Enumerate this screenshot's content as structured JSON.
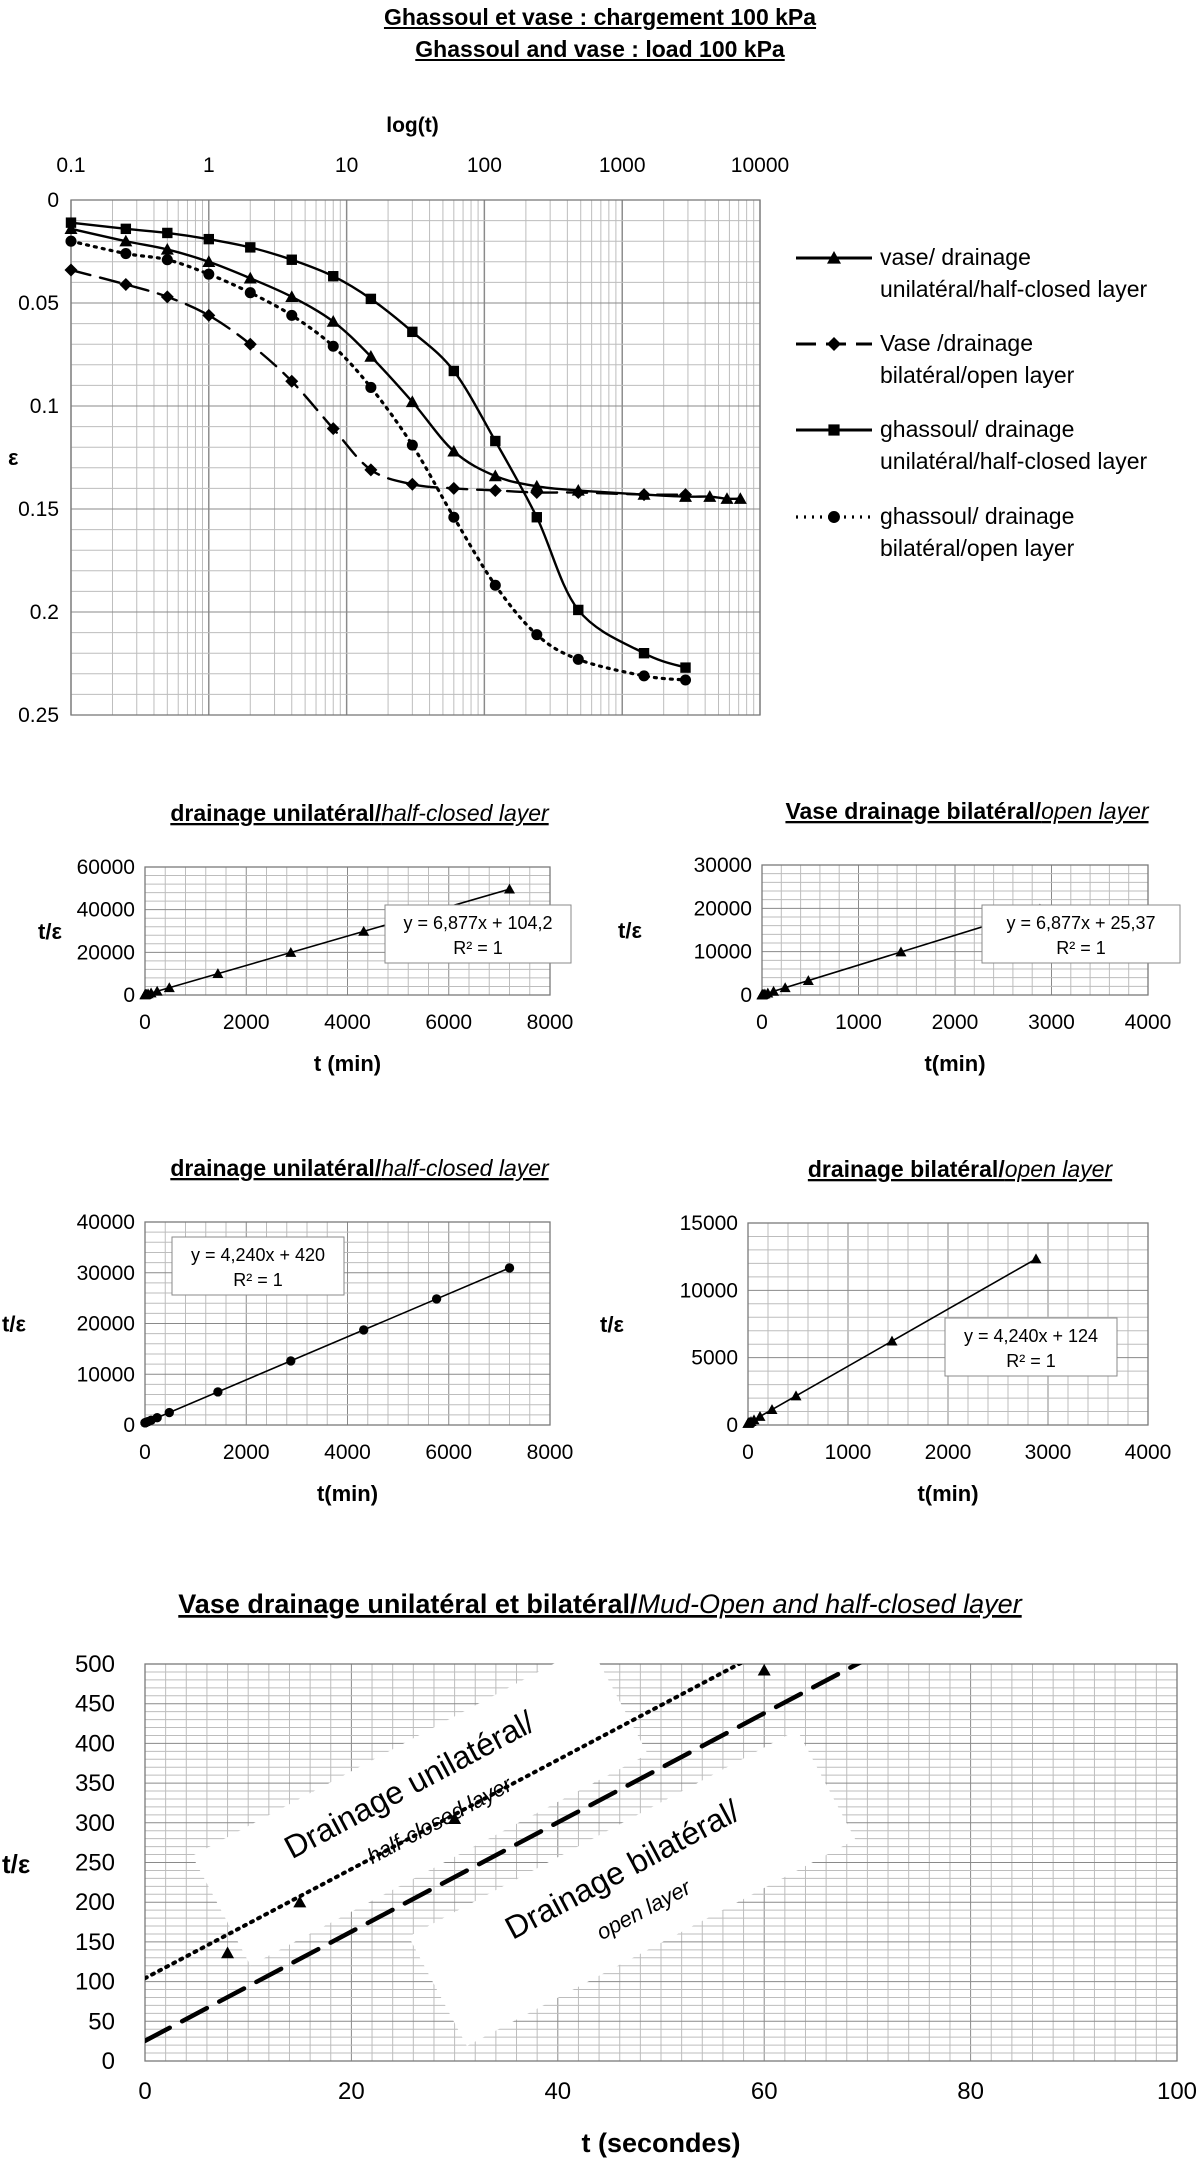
{
  "figure": {
    "title_fr": "Ghassoul et vase : chargement 100 kPa",
    "title_en": "Ghassoul and vase : load 100 kPa"
  },
  "colors": {
    "line": "#000000",
    "grid": "#bdbdbd",
    "plot_bg": "#ffffff"
  },
  "chart_data": [
    {
      "type": "line",
      "title": "",
      "xlabel": "log(t)",
      "ylabel": "ε",
      "xscale": "log",
      "xlim": [
        0.1,
        10000
      ],
      "ylim": [
        0,
        0.25
      ],
      "y_inverted": true,
      "x_axis_position": "top",
      "x_ticks": [
        "0.1",
        "1",
        "10",
        "100",
        "1000",
        "10000"
      ],
      "y_ticks": [
        "0",
        "0.05",
        "0.1",
        "0.15",
        "0.2",
        "0.25"
      ],
      "grid": true,
      "legend_position": "right",
      "series": [
        {
          "name": "vase/ drainage unilatéral/half-closed layer",
          "marker": "triangle",
          "dash": "solid",
          "x": [
            0.1,
            0.25,
            0.5,
            1,
            2,
            4,
            8,
            15,
            30,
            60,
            120,
            240,
            480,
            1440,
            2880,
            4320,
            5760,
            7200
          ],
          "y": [
            0.014,
            0.02,
            0.024,
            0.03,
            0.038,
            0.047,
            0.059,
            0.076,
            0.098,
            0.122,
            0.134,
            0.139,
            0.141,
            0.143,
            0.144,
            0.144,
            0.145,
            0.145
          ]
        },
        {
          "name": "Vase /drainage bilatéral/open layer",
          "marker": "diamond",
          "dash": "longdash",
          "x": [
            0.1,
            0.25,
            0.5,
            1,
            2,
            4,
            8,
            15,
            30,
            60,
            120,
            240,
            480,
            1440,
            2880
          ],
          "y": [
            0.034,
            0.041,
            0.047,
            0.056,
            0.07,
            0.088,
            0.111,
            0.131,
            0.138,
            0.14,
            0.141,
            0.142,
            0.142,
            0.143,
            0.143
          ]
        },
        {
          "name": "ghassoul/ drainage unilatéral/half-closed layer",
          "marker": "square",
          "dash": "solid",
          "x": [
            0.1,
            0.25,
            0.5,
            1,
            2,
            4,
            8,
            15,
            30,
            60,
            120,
            240,
            480,
            1440,
            2880
          ],
          "y": [
            0.011,
            0.014,
            0.016,
            0.019,
            0.023,
            0.029,
            0.037,
            0.048,
            0.064,
            0.083,
            0.117,
            0.154,
            0.199,
            0.22,
            0.227
          ]
        },
        {
          "name": "ghassoul/ drainage bilatéral/open layer",
          "marker": "circle",
          "dash": "dotted",
          "x": [
            0.1,
            0.25,
            0.5,
            1,
            2,
            4,
            8,
            15,
            30,
            60,
            120,
            240,
            480,
            1440,
            2880
          ],
          "y": [
            0.02,
            0.026,
            0.029,
            0.036,
            0.045,
            0.056,
            0.071,
            0.091,
            0.119,
            0.154,
            0.187,
            0.211,
            0.223,
            0.231,
            0.233
          ]
        }
      ]
    },
    {
      "type": "scatter",
      "title_plain": "drainage unilatéral/",
      "title_italic": "half-closed layer",
      "xlabel": "t (min)",
      "ylabel": "t/ε",
      "xlim": [
        0,
        8000
      ],
      "ylim": [
        0,
        60000
      ],
      "x_ticks": [
        "0",
        "2000",
        "4000",
        "6000",
        "8000"
      ],
      "y_ticks": [
        "0",
        "20000",
        "40000",
        "60000"
      ],
      "grid": true,
      "marker": "triangle",
      "x": [
        0.25,
        0.5,
        1,
        2,
        4,
        8,
        15,
        30,
        60,
        120,
        240,
        480,
        1440,
        2880,
        4320,
        5760,
        7200
      ],
      "y": [
        105.9,
        107.6,
        111.1,
        117.9,
        131.7,
        159.2,
        207.4,
        310.5,
        516.9,
        929.7,
        1754.6,
        3405.4,
        10006.9,
        19910.1,
        29812.1,
        39716.3,
        49618.6
      ],
      "trendline": {
        "slope": 6.877,
        "intercept": 104.2,
        "x_range": [
          0,
          7200
        ],
        "equation": "y = 6,877x + 104,2",
        "r2": "R² = 1"
      }
    },
    {
      "type": "scatter",
      "title_plain": "Vase drainage bilatéral/",
      "title_italic": "open layer",
      "xlabel": "t(min)",
      "ylabel": "t/ε",
      "xlim": [
        0,
        4000
      ],
      "ylim": [
        0,
        30000
      ],
      "x_ticks": [
        "0",
        "1000",
        "2000",
        "3000",
        "4000"
      ],
      "y_ticks": [
        "0",
        "10000",
        "20000",
        "30000"
      ],
      "grid": true,
      "marker": "triangle",
      "x": [
        0.25,
        0.5,
        1,
        2,
        4,
        8,
        15,
        30,
        60,
        120,
        240,
        480,
        1440,
        2880
      ],
      "y": [
        27.1,
        28.8,
        32.2,
        39.1,
        52.9,
        80.4,
        128.5,
        231.7,
        438.0,
        850.6,
        1675.9,
        3326.3,
        9928.2,
        19831.1
      ],
      "trendline": {
        "slope": 6.877,
        "intercept": 25.37,
        "x_range": [
          0,
          2880
        ],
        "equation": "y = 6,877x + 25,37",
        "r2": "R² = 1"
      }
    },
    {
      "type": "scatter",
      "title_plain": "drainage unilatéral/",
      "title_italic": "half-closed layer",
      "xlabel": "t(min)",
      "ylabel": "t/ε",
      "xlim": [
        0,
        8000
      ],
      "ylim": [
        0,
        40000
      ],
      "x_ticks": [
        "0",
        "2000",
        "4000",
        "6000",
        "8000"
      ],
      "y_ticks": [
        "0",
        "10000",
        "20000",
        "30000",
        "40000"
      ],
      "grid": true,
      "marker": "circle",
      "x": [
        0.25,
        0.5,
        1,
        2,
        4,
        8,
        15,
        30,
        60,
        120,
        240,
        480,
        1440,
        2880,
        4320,
        5760,
        7200
      ],
      "y": [
        421.1,
        422.1,
        424.2,
        428.5,
        437.0,
        453.9,
        483.6,
        547.2,
        674.4,
        928.8,
        1437.6,
        2455.2,
        6525.6,
        12631.2,
        18736.8,
        24842.4,
        30948.0
      ],
      "trendline": {
        "slope": 4.24,
        "intercept": 420,
        "x_range": [
          0,
          7200
        ],
        "equation": "y = 4,240x + 420",
        "r2": "R² = 1"
      }
    },
    {
      "type": "scatter",
      "title_plain": "drainage bilatéral/",
      "title_italic": "open layer",
      "xlabel": "t(min)",
      "ylabel": "t/ε",
      "xlim": [
        0,
        4000
      ],
      "ylim": [
        0,
        15000
      ],
      "x_ticks": [
        "0",
        "1000",
        "2000",
        "3000",
        "4000"
      ],
      "y_ticks": [
        "0",
        "5000",
        "10000",
        "15000"
      ],
      "grid": true,
      "marker": "triangle",
      "x": [
        0.25,
        0.5,
        1,
        2,
        4,
        8,
        15,
        30,
        60,
        120,
        240,
        480,
        1440,
        2880
      ],
      "y": [
        125.1,
        126.1,
        128.2,
        132.5,
        141.0,
        157.9,
        187.6,
        251.2,
        378.4,
        632.8,
        1141.6,
        2159.2,
        6229.6,
        12335.2
      ],
      "trendline": {
        "slope": 4.24,
        "intercept": 124,
        "x_range": [
          0,
          2880
        ],
        "equation": "y = 4,240x + 124",
        "r2": "R² = 1"
      }
    },
    {
      "type": "line",
      "title_plain": "Vase drainage unilatéral et bilatéral/",
      "title_italic": "Mud-Open and half-closed layer",
      "xlabel": "t (secondes)",
      "ylabel": "t/ε",
      "xlim": [
        0,
        100
      ],
      "ylim": [
        0,
        500
      ],
      "x_ticks": [
        "0",
        "20",
        "40",
        "60",
        "80",
        "100"
      ],
      "y_ticks": [
        "0",
        "50",
        "100",
        "150",
        "200",
        "250",
        "300",
        "350",
        "400",
        "450",
        "500"
      ],
      "grid": true,
      "points_x": [
        8,
        15,
        30,
        60
      ],
      "points_y": [
        136,
        200,
        305,
        492
      ],
      "lines": [
        {
          "slope": 6.877,
          "intercept": 104.2,
          "dash": "dotted"
        },
        {
          "slope": 6.877,
          "intercept": 25.37,
          "dash": "longdash"
        }
      ],
      "annotation_unilateral": {
        "line1": "Drainage unilatéral/",
        "line2": "half-closed layer"
      },
      "annotation_bilateral": {
        "line1": "Drainage bilatéral/",
        "line2": "open layer"
      }
    }
  ]
}
